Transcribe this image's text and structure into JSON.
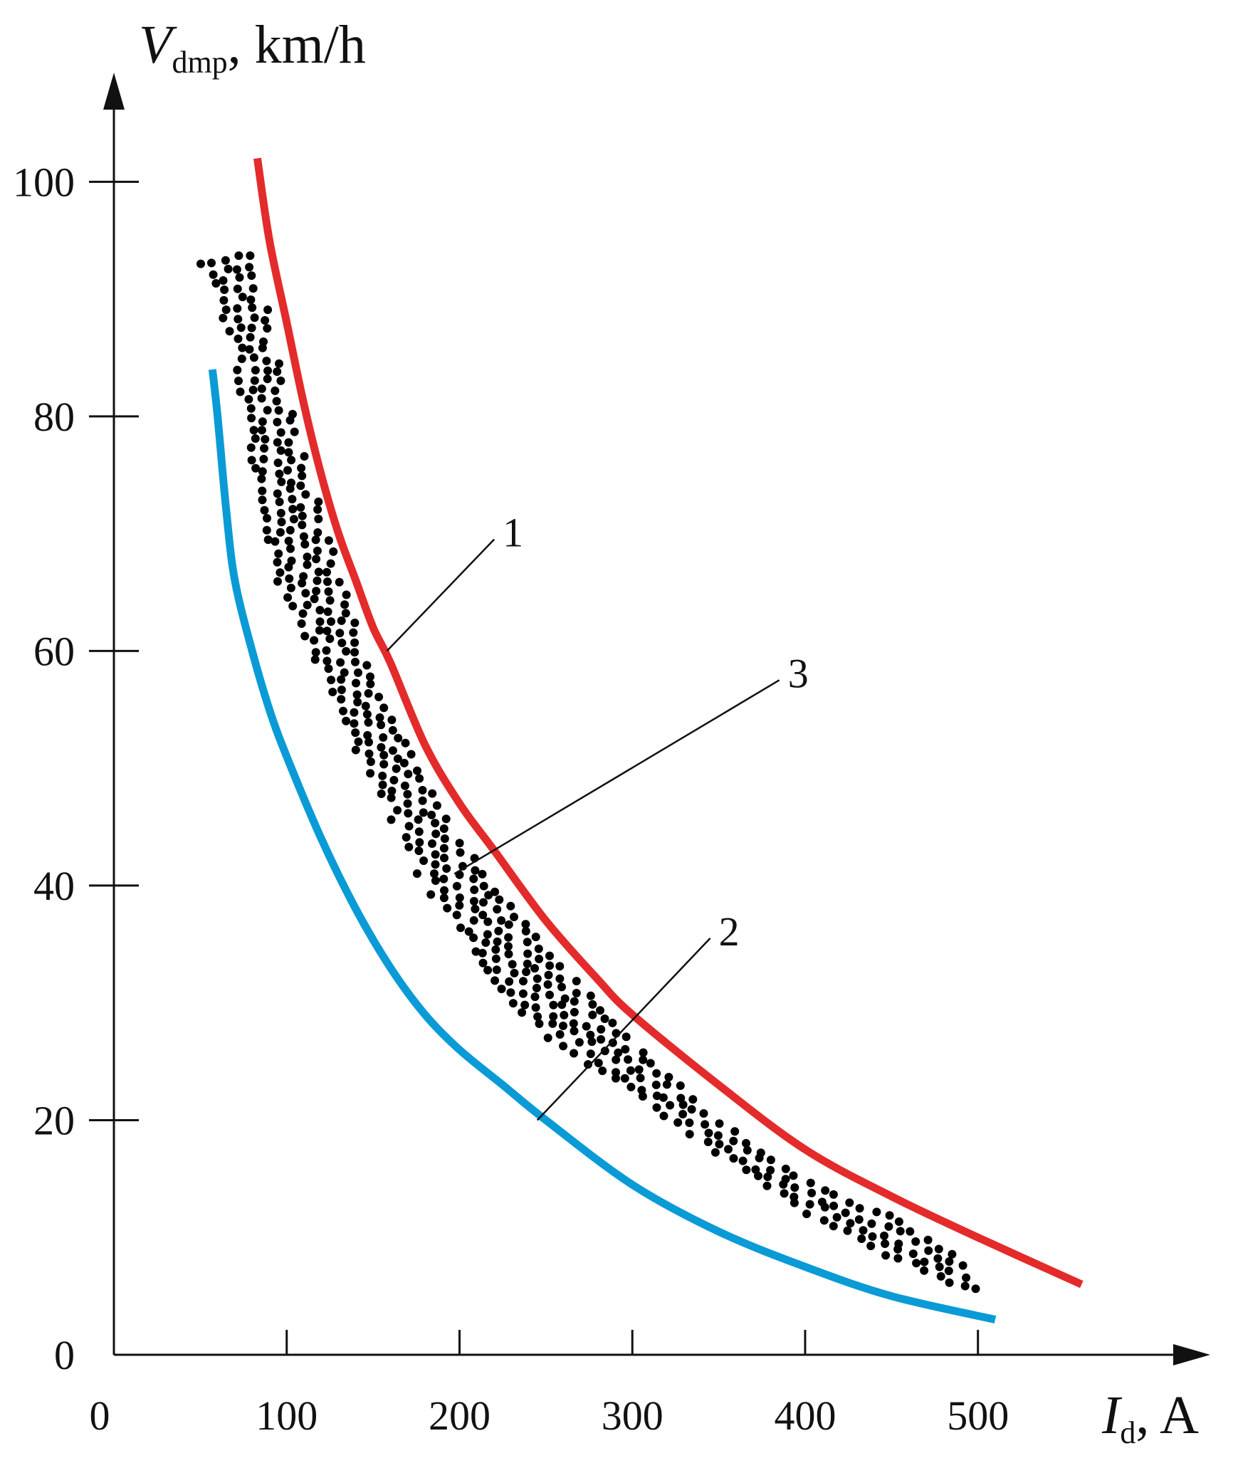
{
  "chart_data": {
    "type": "line",
    "xlabel": {
      "symbol": "I",
      "subscript": "d",
      "unit": ", A"
    },
    "ylabel": {
      "symbol": "V",
      "subscript": "dmp",
      "unit": ", km/h"
    },
    "xlim": [
      0,
      620
    ],
    "ylim": [
      0,
      107
    ],
    "x_ticks": [
      0,
      100,
      200,
      300,
      400,
      500
    ],
    "y_ticks": [
      0,
      20,
      40,
      60,
      80,
      100
    ],
    "grid": false,
    "legend": "none",
    "series": [
      {
        "label": "1",
        "color": "#e32b2b",
        "points": [
          [
            83,
            102
          ],
          [
            90,
            95
          ],
          [
            100,
            88
          ],
          [
            110,
            81
          ],
          [
            120,
            75
          ],
          [
            130,
            70
          ],
          [
            140,
            66
          ],
          [
            150,
            62
          ],
          [
            160,
            59
          ],
          [
            180,
            52
          ],
          [
            200,
            47
          ],
          [
            220,
            43
          ],
          [
            250,
            37
          ],
          [
            280,
            32
          ],
          [
            300,
            29
          ],
          [
            350,
            23
          ],
          [
            400,
            17.5
          ],
          [
            450,
            13.5
          ],
          [
            500,
            10
          ],
          [
            560,
            6
          ]
        ]
      },
      {
        "label": "2",
        "color": "#0a9bd6",
        "points": [
          [
            57,
            84
          ],
          [
            60,
            80
          ],
          [
            65,
            72
          ],
          [
            70,
            66
          ],
          [
            80,
            60
          ],
          [
            90,
            55
          ],
          [
            100,
            51
          ],
          [
            120,
            44
          ],
          [
            140,
            38
          ],
          [
            160,
            33
          ],
          [
            180,
            29
          ],
          [
            200,
            26
          ],
          [
            225,
            23
          ],
          [
            250,
            20
          ],
          [
            300,
            14.5
          ],
          [
            350,
            10.5
          ],
          [
            400,
            7.5
          ],
          [
            450,
            5
          ],
          [
            510,
            3
          ]
        ]
      },
      {
        "label": "3",
        "type": "scatter",
        "color": "#000000",
        "band": {
          "x_range": [
            50,
            500
          ],
          "upper": [
            [
              50,
              93
            ],
            [
              70,
              94
            ],
            [
              80,
              94
            ],
            [
              100,
              82
            ],
            [
              120,
              72
            ],
            [
              150,
              58
            ],
            [
              200,
              44
            ],
            [
              250,
              35
            ],
            [
              300,
              27
            ],
            [
              350,
              20
            ],
            [
              400,
              15
            ],
            [
              450,
              12
            ],
            [
              490,
              8.5
            ],
            [
              500,
              6
            ]
          ],
          "lower": [
            [
              50,
              93
            ],
            [
              60,
              90
            ],
            [
              70,
              84
            ],
            [
              80,
              75
            ],
            [
              90,
              67
            ],
            [
              100,
              64
            ],
            [
              120,
              58
            ],
            [
              140,
              51
            ],
            [
              160,
              46
            ],
            [
              180,
              40
            ],
            [
              200,
              36
            ],
            [
              220,
              31
            ],
            [
              250,
              27
            ],
            [
              300,
              22
            ],
            [
              350,
              17
            ],
            [
              400,
              12
            ],
            [
              450,
              8
            ],
            [
              500,
              5
            ]
          ]
        }
      }
    ],
    "annotations": [
      {
        "text": "1",
        "target": [
          158,
          60
        ],
        "label_at": [
          225,
          70
        ]
      },
      {
        "text": "3",
        "target": [
          197,
          41
        ],
        "label_at": [
          390,
          58
        ]
      },
      {
        "text": "2",
        "target": [
          245,
          20
        ],
        "label_at": [
          350,
          36
        ]
      }
    ]
  }
}
